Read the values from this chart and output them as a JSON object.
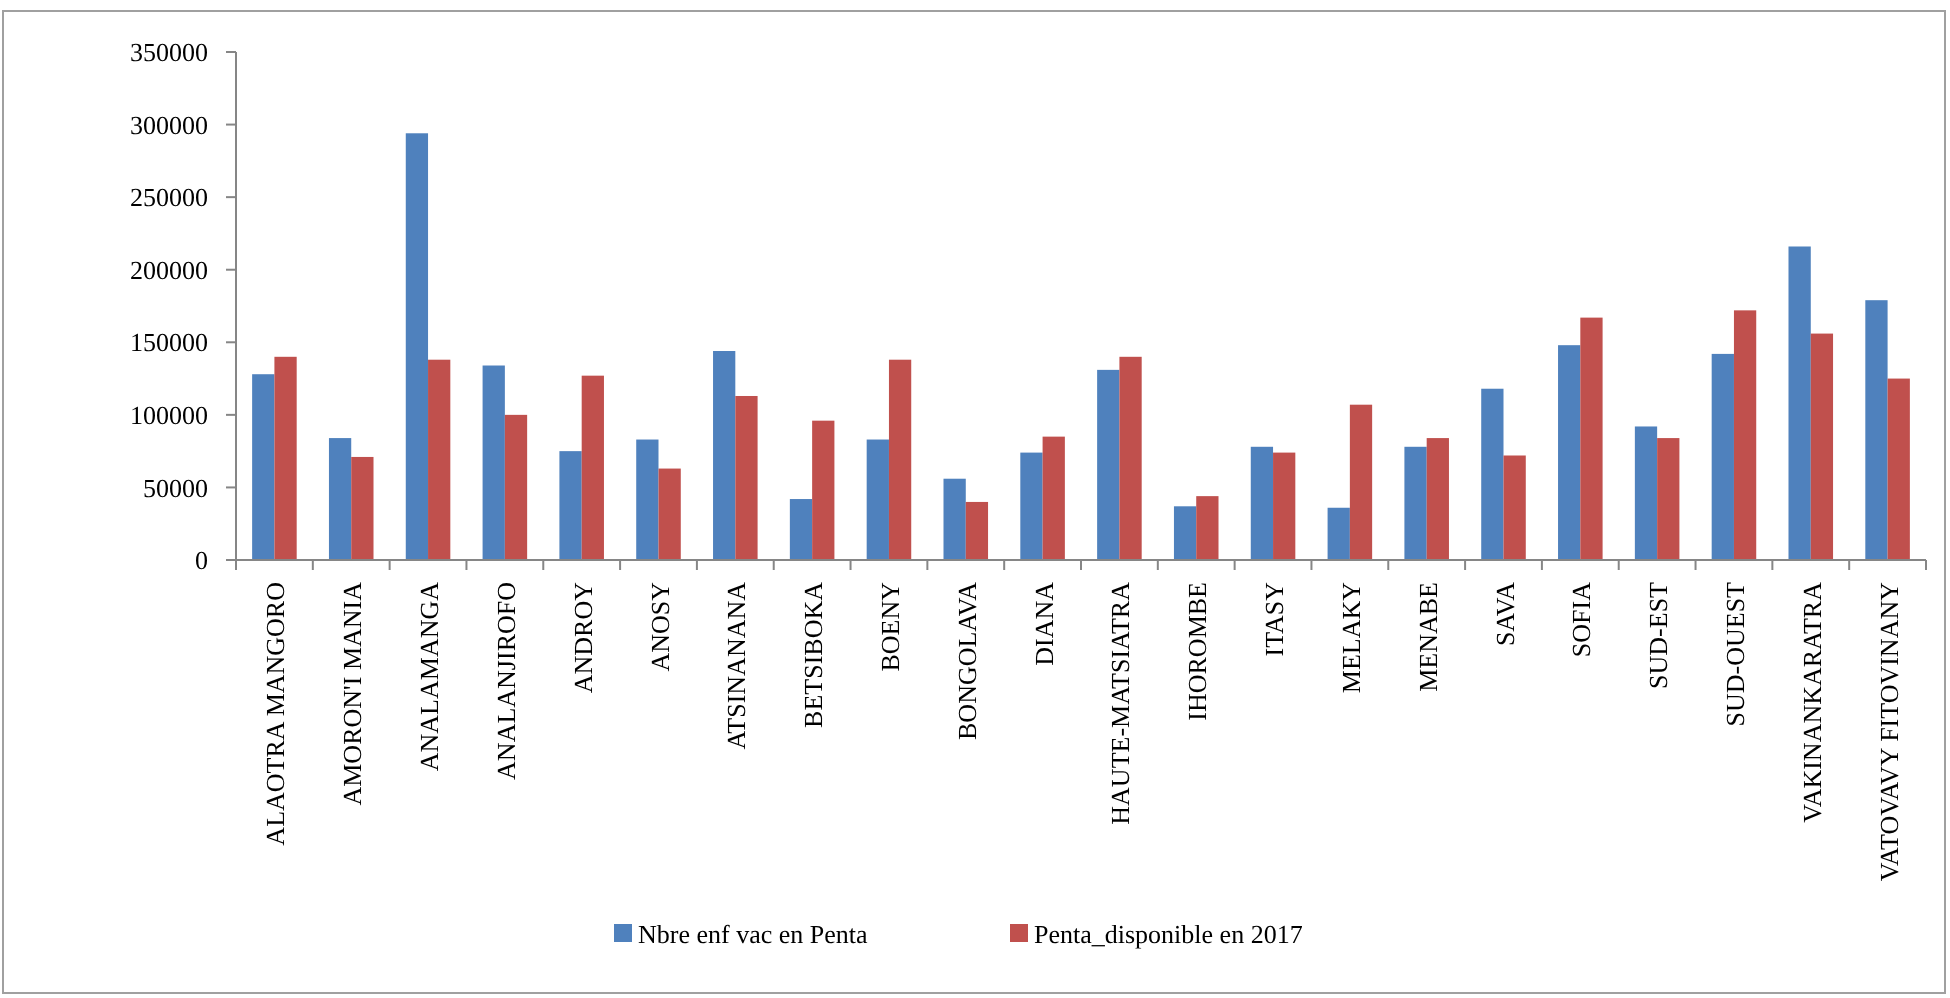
{
  "chart_data": {
    "type": "bar",
    "categories": [
      "ALAOTRA MANGORO",
      "AMORON'I MANIA",
      "ANALAMANGA",
      "ANALANJIROFO",
      "ANDROY",
      "ANOSY",
      "ATSINANANA",
      "BETSIBOKA",
      "BOENY",
      "BONGOLAVA",
      "DIANA",
      "HAUTE-MATSIATRA",
      "IHOROMBE",
      "ITASY",
      "MELAKY",
      "MENABE",
      "SAVA",
      "SOFIA",
      "SUD-EST",
      "SUD-OUEST",
      "VAKINANKARATRA",
      "VATOVAVY FITOVINANY"
    ],
    "series": [
      {
        "name": "Nbre enf vac en Penta",
        "color": "#4f81bd",
        "values": [
          128000,
          84000,
          294000,
          134000,
          75000,
          83000,
          144000,
          42000,
          83000,
          56000,
          74000,
          131000,
          37000,
          78000,
          36000,
          78000,
          118000,
          148000,
          92000,
          142000,
          216000,
          179000
        ]
      },
      {
        "name": "Penta_disponible en 2017",
        "color": "#c0504d",
        "values": [
          140000,
          71000,
          138000,
          100000,
          127000,
          63000,
          113000,
          96000,
          138000,
          40000,
          85000,
          140000,
          44000,
          74000,
          107000,
          84000,
          72000,
          167000,
          84000,
          172000,
          156000,
          125000
        ]
      }
    ],
    "ylim": [
      0,
      350000
    ],
    "yticks": [
      0,
      50000,
      100000,
      150000,
      200000,
      250000,
      300000,
      350000
    ],
    "legend": "bottom"
  }
}
